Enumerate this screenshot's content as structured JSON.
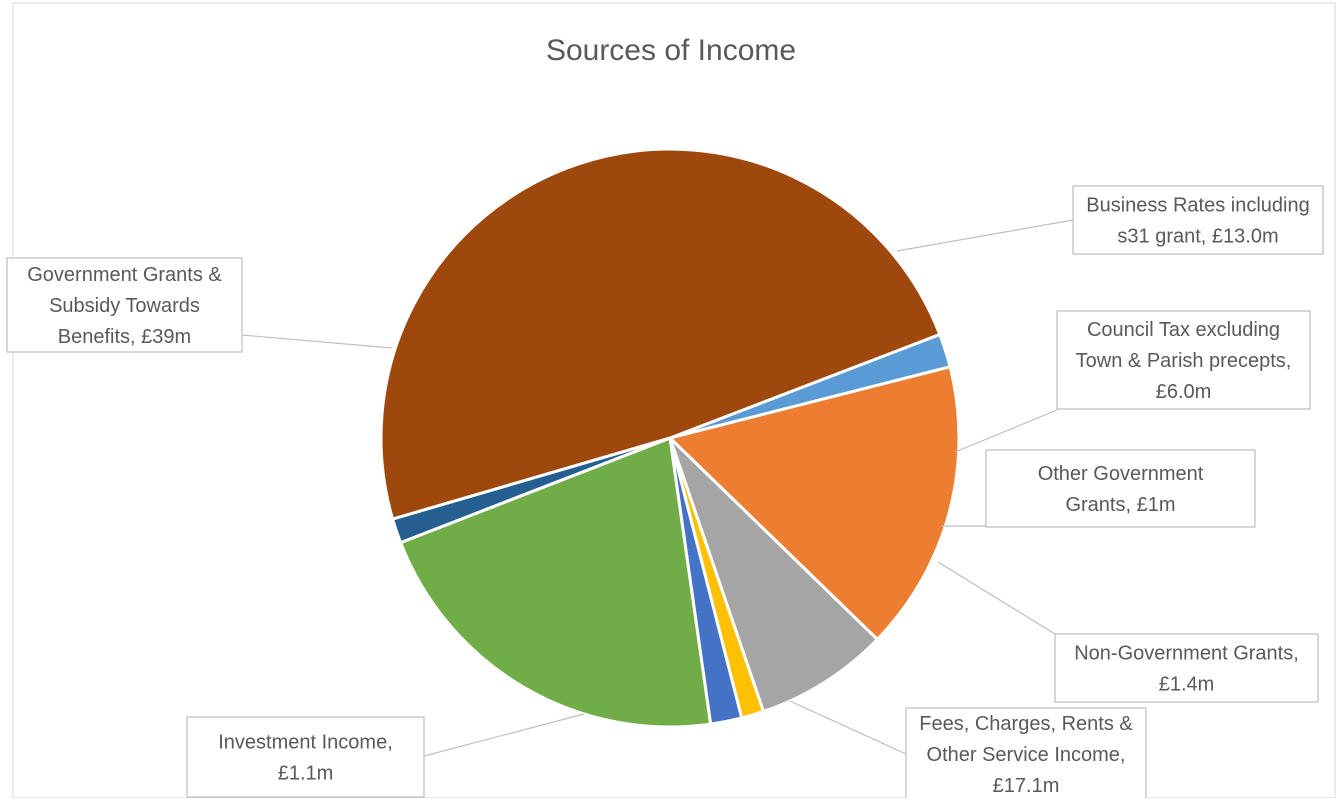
{
  "chart_data": {
    "type": "pie",
    "title": "Sources of Income",
    "slices": [
      {
        "label": "",
        "value": 1.5,
        "color": "#5B9BD5",
        "label_lines": []
      },
      {
        "label": "Business Rates including s31 grant, £13.0m",
        "value": 13.0,
        "color": "#ED7D31",
        "label_lines": [
          "Business Rates including",
          "s31 grant, £13.0m"
        ]
      },
      {
        "label": "Council Tax excluding Town & Parish precepts, £6.0m",
        "value": 6.0,
        "color": "#A5A5A5",
        "label_lines": [
          "Council Tax excluding",
          "Town & Parish precepts,",
          "£6.0m"
        ]
      },
      {
        "label": "Other Government Grants, £1m",
        "value": 1.0,
        "color": "#FFC000",
        "label_lines": [
          "Other Government",
          "Grants, £1m"
        ]
      },
      {
        "label": "Non-Government Grants, £1.4m",
        "value": 1.4,
        "color": "#4472C4",
        "label_lines": [
          "Non-Government Grants,",
          "£1.4m"
        ]
      },
      {
        "label": "Fees, Charges, Rents & Other Service Income, £17.1m",
        "value": 17.1,
        "color": "#70AD47",
        "label_lines": [
          "Fees, Charges, Rents &",
          "Other Service Income,",
          "£17.1m"
        ]
      },
      {
        "label": "Investment Income, £1.1m",
        "value": 1.1,
        "color": "#255E91",
        "label_lines": [
          "Investment Income,",
          "£1.1m"
        ]
      },
      {
        "label": "Government Grants & Subsidy Towards Benefits, £39m",
        "value": 39.0,
        "color": "#9E480E",
        "label_lines": [
          "Government Grants &",
          "Subsidy Towards",
          "Benefits, £39m"
        ]
      }
    ]
  }
}
